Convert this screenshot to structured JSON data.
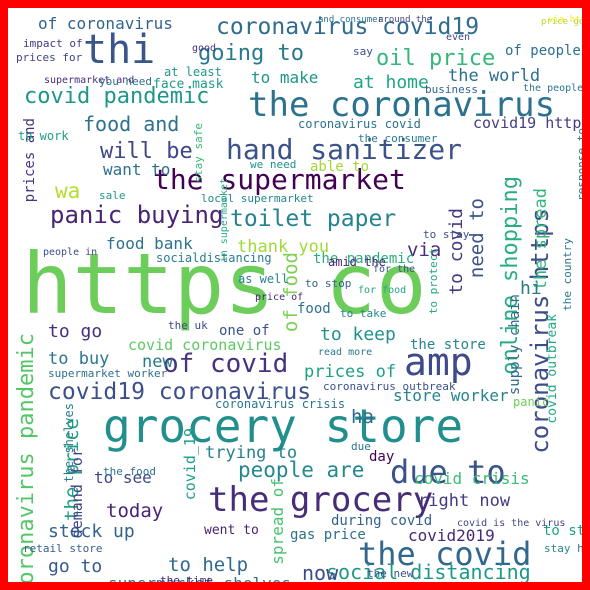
{
  "words": [
    {
      "text": "https co",
      "color": "#6ccd5a"
    },
    {
      "text": "grocery store",
      "color": "#218f8d"
    },
    {
      "text": "the coronavirus",
      "color": "#2c728e"
    },
    {
      "text": "the grocery",
      "color": "#472c7a"
    },
    {
      "text": "thi",
      "color": "#39568c"
    },
    {
      "text": "the supermarket",
      "color": "#440154"
    },
    {
      "text": "amp",
      "color": "#3e4a89"
    },
    {
      "text": "hand sanitizer",
      "color": "#3b528b"
    },
    {
      "text": "the covid",
      "color": "#31688e"
    },
    {
      "text": "coronavirus https",
      "color": "#3e4c8a"
    },
    {
      "text": "due to",
      "color": "#3a538b"
    },
    {
      "text": "coronavirus covid19",
      "color": "#2f6c8e"
    },
    {
      "text": "panic buying",
      "color": "#482475"
    },
    {
      "text": "toilet paper",
      "color": "#25838e"
    },
    {
      "text": "online shopping",
      "color": "#29af7f"
    },
    {
      "text": "covid19 coronavirus",
      "color": "#3c4f8a"
    },
    {
      "text": "of covid",
      "color": "#46327e"
    },
    {
      "text": "going to",
      "color": "#2a788e"
    },
    {
      "text": "oil price",
      "color": "#35b779"
    },
    {
      "text": "covid pandemic",
      "color": "#1f968b"
    },
    {
      "text": "food and",
      "color": "#2d718e"
    },
    {
      "text": "will be",
      "color": "#3f4788"
    },
    {
      "text": "people are",
      "color": "#23898e"
    },
    {
      "text": "social distancing",
      "color": "#1f988b"
    },
    {
      "text": "coronavirus pandemic",
      "color": "#55c667"
    },
    {
      "text": "the price",
      "color": "#1fa187"
    },
    {
      "text": "need to",
      "color": "#3b528b"
    },
    {
      "text": "to covid",
      "color": "#453781"
    },
    {
      "text": "the spread",
      "color": "#32b67a"
    },
    {
      "text": "wa",
      "color": "#b5de2b"
    },
    {
      "text": "at home",
      "color": "#20a486"
    },
    {
      "text": "the world",
      "color": "#2e6e8e"
    },
    {
      "text": "of coronavirus",
      "color": "#33638d"
    },
    {
      "text": "to make",
      "color": "#1f958b"
    },
    {
      "text": "want to",
      "color": "#2d708e"
    },
    {
      "text": "food bank",
      "color": "#2d718e"
    },
    {
      "text": "thank you",
      "color": "#a0da39"
    },
    {
      "text": "via",
      "color": "#472d7b"
    },
    {
      "text": "to keep",
      "color": "#21918c"
    },
    {
      "text": "prices of",
      "color": "#1fa088"
    },
    {
      "text": "store worker",
      "color": "#25848e"
    },
    {
      "text": "right now",
      "color": "#443983"
    },
    {
      "text": "covid2019",
      "color": "#482878"
    },
    {
      "text": "stock up",
      "color": "#33638d"
    },
    {
      "text": "to help",
      "color": "#31688e"
    },
    {
      "text": "go to",
      "color": "#38598c"
    },
    {
      "text": "supermarket shelves",
      "color": "#2b748e"
    },
    {
      "text": "now",
      "color": "#3e4a89"
    },
    {
      "text": "today",
      "color": "#482475"
    },
    {
      "text": "to go",
      "color": "#46307e"
    },
    {
      "text": "to buy",
      "color": "#2a768e"
    },
    {
      "text": "new",
      "color": "#2a788e"
    },
    {
      "text": "covid crisis",
      "color": "#3bbb75"
    },
    {
      "text": "trying to",
      "color": "#26828e"
    },
    {
      "text": "to see",
      "color": "#3e4989"
    },
    {
      "text": "spread of",
      "color": "#4ac16d"
    },
    {
      "text": "covid_19",
      "color": "#1f9e89"
    },
    {
      "text": "of food",
      "color": "#7ad151"
    },
    {
      "text": "ha",
      "color": "#31688e"
    },
    {
      "text": "hi",
      "color": "#29798e"
    },
    {
      "text": "demand for",
      "color": "#414487"
    },
    {
      "text": "covid19 https",
      "color": "#433e85"
    },
    {
      "text": "supermarket and",
      "color": "#472c7a"
    },
    {
      "text": "face mask",
      "color": "#1f9a8a"
    },
    {
      "text": "the pandemic",
      "color": "#29af7f"
    },
    {
      "text": "covid coronavirus",
      "color": "#5ec962"
    },
    {
      "text": "went to",
      "color": "#482173"
    },
    {
      "text": "gas price",
      "color": "#2e6f8e"
    },
    {
      "text": "during covid",
      "color": "#33638d"
    },
    {
      "text": "to stock",
      "color": "#1fa088"
    },
    {
      "text": "of people",
      "color": "#2d708e"
    },
    {
      "text": "at least",
      "color": "#1f988b"
    },
    {
      "text": "the store",
      "color": "#25858e"
    },
    {
      "text": "supply chain",
      "color": "#31688e"
    },
    {
      "text": "prices and",
      "color": "#46327e"
    },
    {
      "text": "able to",
      "color": "#a0da39"
    },
    {
      "text": "one of",
      "color": "#3b528b"
    },
    {
      "text": "covid outbreak",
      "color": "#22a884"
    },
    {
      "text": "day",
      "color": "#440154"
    },
    {
      "text": "stay home",
      "color": "#27808e"
    },
    {
      "text": "the food",
      "color": "#2c728e"
    },
    {
      "text": "we need",
      "color": "#21918c"
    },
    {
      "text": "impact of",
      "color": "#453781"
    },
    {
      "text": "prices for",
      "color": "#414487"
    },
    {
      "text": "you need",
      "color": "#2e6f8e"
    },
    {
      "text": "retail store",
      "color": "#355f8d"
    },
    {
      "text": "the time",
      "color": "#482878"
    },
    {
      "text": "the new",
      "color": "#3b528b"
    },
    {
      "text": "for food",
      "color": "#22a884"
    },
    {
      "text": "to take",
      "color": "#24878e"
    },
    {
      "text": "coronavirus covid",
      "color": "#2c728e"
    },
    {
      "text": "the consumer",
      "color": "#29798e"
    },
    {
      "text": "sale",
      "color": "#1f978b"
    },
    {
      "text": "good",
      "color": "#46327e"
    },
    {
      "text": "say",
      "color": "#3d4e8a"
    },
    {
      "text": "the people",
      "color": "#2a768e"
    },
    {
      "text": "business",
      "color": "#33638d"
    },
    {
      "text": "coronavirus outbreak",
      "color": "#3c508b"
    },
    {
      "text": "stay safe",
      "color": "#38b977"
    },
    {
      "text": "to work",
      "color": "#1f9e89"
    },
    {
      "text": "local supermarket",
      "color": "#23888e"
    },
    {
      "text": "in supermarket",
      "color": "#25ab82"
    },
    {
      "text": "amid the",
      "color": "#482475"
    },
    {
      "text": "to stay",
      "color": "#3c4f8a"
    },
    {
      "text": "socialdistancing",
      "color": "#287c8e"
    },
    {
      "text": "coronavirus crisis",
      "color": "#2a788e"
    },
    {
      "text": "even",
      "color": "#414487"
    },
    {
      "text": "via https",
      "color": "#fde725"
    },
    {
      "text": "covid is the virus",
      "color": "#3f4788"
    },
    {
      "text": "supermarket worker",
      "color": "#2e6f8e"
    },
    {
      "text": "the shelves",
      "color": "#287d8e"
    },
    {
      "text": "people in",
      "color": "#3e4a89"
    },
    {
      "text": "read more",
      "color": "#2a788e"
    },
    {
      "text": "as well",
      "color": "#25848e"
    },
    {
      "text": "the uk",
      "color": "#3e4989"
    },
    {
      "text": "due",
      "color": "#2c728e"
    },
    {
      "text": "panic",
      "color": "#6ece58"
    },
    {
      "text": "response to",
      "color": "#2a768e"
    },
    {
      "text": "and consumer",
      "color": "#2d708e"
    },
    {
      "text": "around the",
      "color": "#414487"
    },
    {
      "text": "price gouging",
      "color": "#b5de2b"
    },
    {
      "text": "the country",
      "color": "#29798e"
    },
    {
      "text": "to protect",
      "color": "#22a884"
    },
    {
      "text": "to stop",
      "color": "#33638d"
    },
    {
      "text": "for the",
      "color": "#3b528b"
    },
    {
      "text": "price of",
      "color": "#482878"
    },
    {
      "text": "food",
      "color": "#2c728e"
    }
  ]
}
